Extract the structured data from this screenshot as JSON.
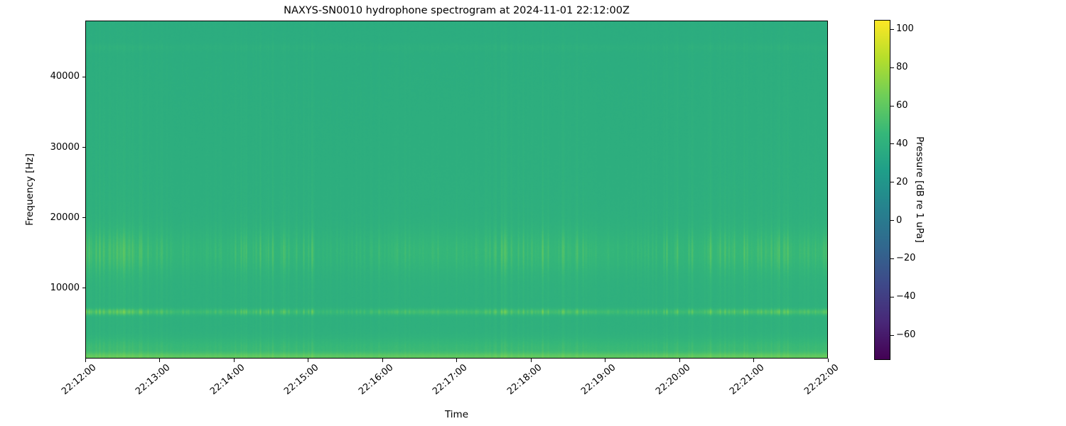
{
  "figure": {
    "title": "NAXYS-SN0010 hydrophone spectrogram at 2024-11-01 22:12:00Z",
    "background_color": "#ffffff"
  },
  "axes": {
    "xlabel": "Time",
    "ylabel": "Frequency [Hz]",
    "x_tick_labels": [
      "22:12:00",
      "22:13:00",
      "22:14:00",
      "22:15:00",
      "22:16:00",
      "22:17:00",
      "22:18:00",
      "22:19:00",
      "22:20:00",
      "22:21:00",
      "22:22:00"
    ],
    "y_ticks": [
      {
        "value": 10000,
        "label": "10000"
      },
      {
        "value": 20000,
        "label": "20000"
      },
      {
        "value": 30000,
        "label": "30000"
      },
      {
        "value": 40000,
        "label": "40000"
      }
    ]
  },
  "colorbar": {
    "label": "Pressure [dB re 1 uPa]",
    "ticks": [
      {
        "value": 100,
        "label": "100"
      },
      {
        "value": 80,
        "label": "80"
      },
      {
        "value": 60,
        "label": "60"
      },
      {
        "value": 40,
        "label": "40"
      },
      {
        "value": 20,
        "label": "20"
      },
      {
        "value": 0,
        "label": "0"
      },
      {
        "value": -20,
        "label": "−20"
      },
      {
        "value": -40,
        "label": "−40"
      },
      {
        "value": -60,
        "label": "−60"
      }
    ],
    "colormap": "viridis",
    "colormap_stops": [
      "#440154",
      "#482878",
      "#3e4989",
      "#31688e",
      "#26828e",
      "#1f9e89",
      "#35b779",
      "#6ece58",
      "#b5de2b",
      "#fde725"
    ]
  },
  "chart_data": {
    "type": "heatmap",
    "subtype": "spectrogram",
    "title": "NAXYS-SN0010 hydrophone spectrogram at 2024-11-01 22:12:00Z",
    "xlabel": "Time",
    "ylabel": "Frequency [Hz]",
    "time_start": "22:12:00",
    "time_end": "22:22:00",
    "time_tick_interval_s": 60,
    "freq_range_hz": [
      0,
      48000
    ],
    "pressure_range_db": [
      -73,
      105
    ],
    "dominant_background_color": "#2fb07c",
    "background_level_db": 40,
    "background_tilt_db": -2.5,
    "pixel_noise_db": 1.6,
    "bands": [
      {
        "name": "low-frequency-noise-floor",
        "center_hz": 200,
        "sigma_hz": 400,
        "static_gain_db": 16,
        "striation_gain_db": 4
      },
      {
        "name": "low-band",
        "center_hz": 1400,
        "sigma_hz": 1000,
        "static_gain_db": 6,
        "striation_gain_db": 5
      },
      {
        "name": "tonal-band-6500hz",
        "center_hz": 6600,
        "sigma_hz": 300,
        "static_gain_db": 6,
        "striation_gain_db": 26
      },
      {
        "name": "mid-band-15khz",
        "center_hz": 15200,
        "sigma_hz": 2100,
        "static_gain_db": 3,
        "striation_gain_db": 16
      },
      {
        "name": "broadband-striations",
        "center_hz": 11000,
        "sigma_hz": 8500,
        "static_gain_db": 0,
        "striation_gain_db": 6
      },
      {
        "name": "high-band-striations",
        "center_hz": 33000,
        "sigma_hz": 12000,
        "static_gain_db": 0,
        "striation_gain_db": 3.5
      },
      {
        "name": "faint-line-44khz",
        "center_hz": 44300,
        "sigma_hz": 350,
        "static_gain_db": 1,
        "striation_gain_db": 3
      }
    ],
    "striation_description": "irregular broadband vertical striations aligned in time across all frequency bands, densest between 5 and 18 kHz"
  }
}
